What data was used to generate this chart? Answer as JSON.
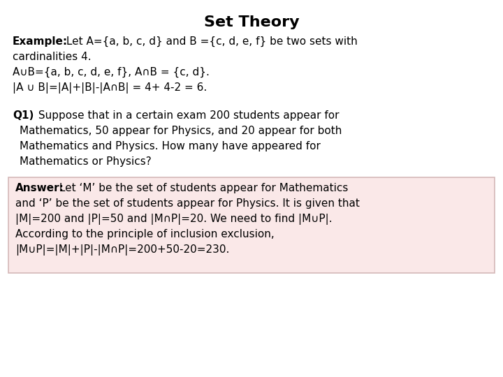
{
  "title": "Set Theory",
  "bg_color": "#ffffff",
  "title_fontsize": 16,
  "body_fontsize": 11,
  "ans_fontsize": 11,
  "answer_bg_color": "#fae8e8",
  "answer_border_color": "#d4b8b8",
  "line1_bold": "Example:",
  "line1_rest": " Let A={a, b, c, d} and B ={c, d, e, f} be two sets with",
  "line2": "cardinalities 4.",
  "line3": "A∪B={a, b, c, d, e, f}, A∩B = {c, d}.",
  "line4": "|A ∪ B|=|A|+|B|-|A∩B| = 4+ 4-2 = 6.",
  "line5_bold": "Q1)",
  "line5_rest": " Suppose that in a certain exam 200 students appear for",
  "line6": "Mathematics, 50 appear for Physics, and 20 appear for both",
  "line7": "Mathematics and Physics. How many have appeared for",
  "line8": "Mathematics or Physics?",
  "ans_bold": "Answer:",
  "ans1": " Let ‘M’ be the set of students appear for Mathematics",
  "ans2": "and ‘P’ be the set of students appear for Physics. It is given that",
  "ans3": "|M|=200 and |P|=50 and |M∩P|=20. We need to find |M∪P|.",
  "ans4": "According to the principle of inclusion exclusion,",
  "ans5": "|M∪P|=|M|+|P|-|M∩P|=200+50-20=230."
}
